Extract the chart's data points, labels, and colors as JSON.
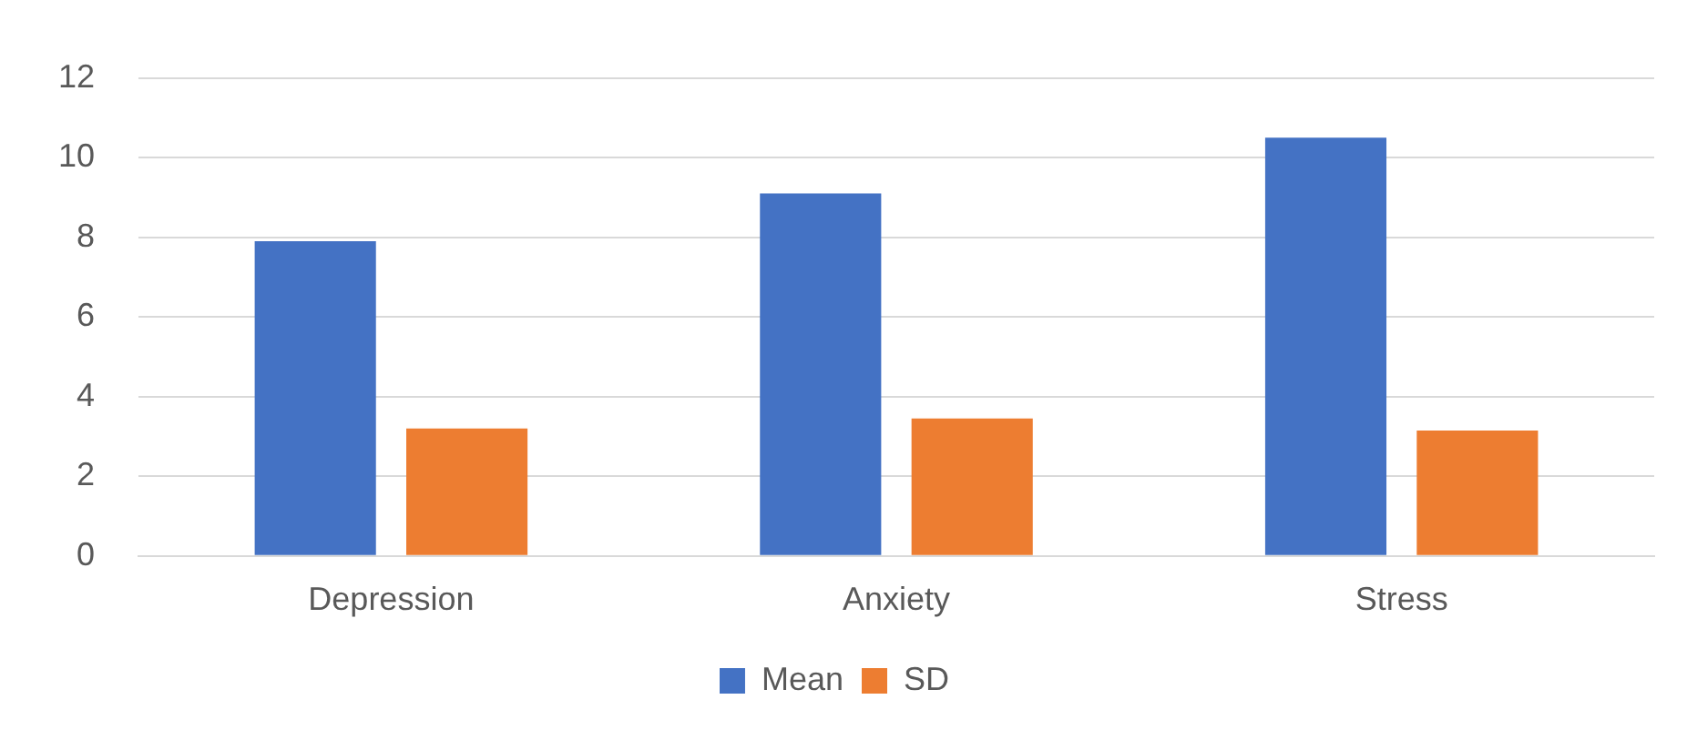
{
  "chart_data": {
    "type": "bar",
    "categories": [
      "Depression",
      "Anxiety",
      "Stress"
    ],
    "series": [
      {
        "name": "Mean",
        "color": "#4472c4",
        "values": [
          7.9,
          9.1,
          10.5
        ]
      },
      {
        "name": "SD",
        "color": "#ed7d31",
        "values": [
          3.2,
          3.45,
          3.15
        ]
      }
    ],
    "ylim": [
      0,
      12
    ],
    "yticks": [
      0,
      2,
      4,
      6,
      8,
      10,
      12
    ],
    "grid": "y",
    "legend": "bottom"
  }
}
